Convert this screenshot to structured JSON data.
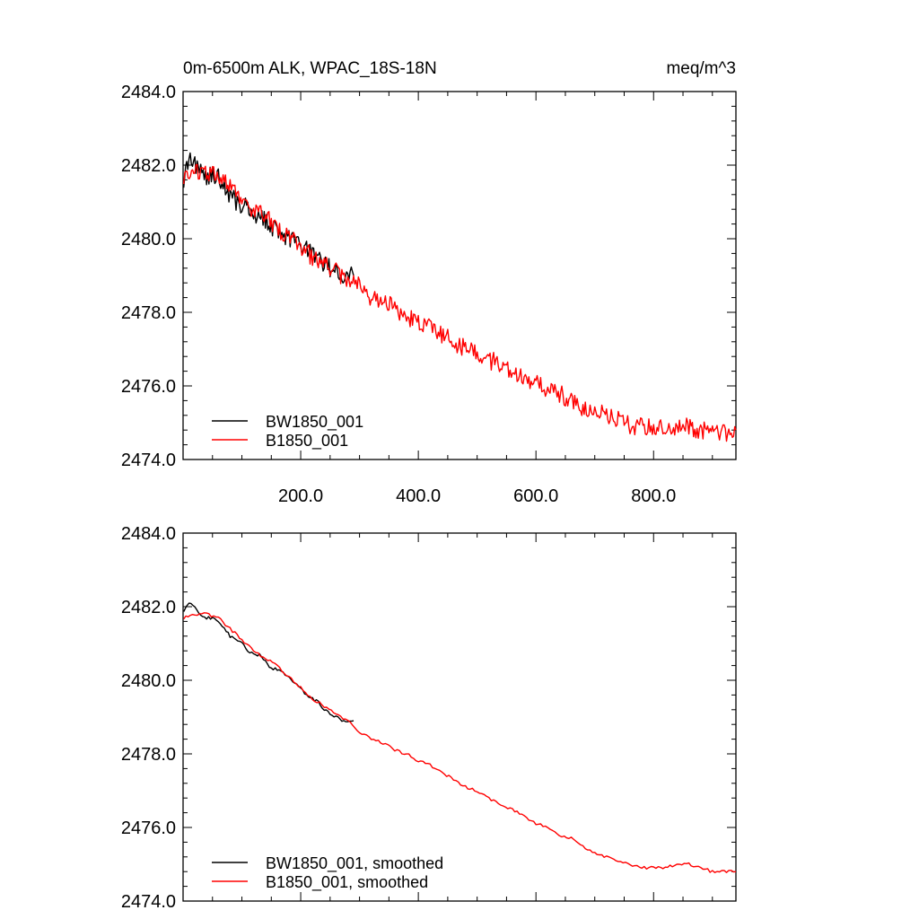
{
  "chart_data": [
    {
      "type": "line",
      "title_left": "0m-6500m ALK, WPAC_18S-18N",
      "title_right": "meq/m^3",
      "xlim": [
        0,
        940
      ],
      "ylim": [
        2474.0,
        2484.0
      ],
      "x_ticks": [
        200,
        400,
        600,
        800
      ],
      "x_tick_labels": [
        "200.0",
        "400.0",
        "600.0",
        "800.0"
      ],
      "y_ticks": [
        2474,
        2476,
        2478,
        2480,
        2482,
        2484
      ],
      "y_tick_labels": [
        "2474.0",
        "2476.0",
        "2478.0",
        "2480.0",
        "2482.0",
        "2484.0"
      ],
      "legend_position": "bottom-left",
      "series": [
        {
          "name": "BW1850_001",
          "color": "#000000",
          "x": [
            1,
            8,
            12,
            20,
            30,
            40,
            50,
            60,
            70,
            80,
            90,
            100,
            110,
            120,
            130,
            140,
            150,
            160,
            170,
            180,
            190,
            200,
            210,
            220,
            230,
            240,
            250,
            260,
            270,
            280,
            290
          ],
          "y": [
            2481.6,
            2482.0,
            2482.3,
            2482.0,
            2481.9,
            2481.7,
            2481.7,
            2481.7,
            2481.4,
            2481.2,
            2481.0,
            2480.9,
            2480.9,
            2480.7,
            2480.6,
            2480.5,
            2480.3,
            2480.3,
            2480.1,
            2480.0,
            2479.9,
            2479.8,
            2479.7,
            2479.6,
            2479.4,
            2479.3,
            2479.2,
            2479.1,
            2479.0,
            2479.0,
            2479.0
          ]
        },
        {
          "name": "B1850_001",
          "color": "#ff0000",
          "x": [
            1,
            20,
            40,
            60,
            80,
            100,
            120,
            140,
            160,
            180,
            200,
            220,
            240,
            260,
            280,
            300,
            320,
            340,
            360,
            380,
            400,
            420,
            440,
            460,
            480,
            500,
            520,
            540,
            560,
            580,
            600,
            620,
            640,
            660,
            680,
            700,
            720,
            740,
            760,
            780,
            800,
            820,
            840,
            860,
            880,
            900,
            920,
            940
          ],
          "y": [
            2481.7,
            2481.8,
            2481.8,
            2481.7,
            2481.4,
            2481.1,
            2480.8,
            2480.6,
            2480.3,
            2480.0,
            2479.8,
            2479.5,
            2479.3,
            2479.1,
            2478.9,
            2478.7,
            2478.4,
            2478.3,
            2478.1,
            2477.9,
            2477.7,
            2477.6,
            2477.4,
            2477.2,
            2477.0,
            2476.9,
            2476.7,
            2476.6,
            2476.4,
            2476.2,
            2476.1,
            2475.9,
            2475.8,
            2475.6,
            2475.4,
            2475.3,
            2475.2,
            2475.1,
            2474.9,
            2474.9,
            2474.9,
            2474.9,
            2474.9,
            2474.9,
            2474.8,
            2474.8,
            2474.7,
            2474.8
          ]
        }
      ]
    },
    {
      "type": "line",
      "xlim": [
        0,
        940
      ],
      "ylim": [
        2474.0,
        2484.0
      ],
      "y_ticks": [
        2474,
        2476,
        2478,
        2480,
        2482,
        2484
      ],
      "y_tick_labels": [
        "2474.0",
        "2476.0",
        "2478.0",
        "2480.0",
        "2482.0",
        "2484.0"
      ],
      "legend_position": "bottom-left",
      "series": [
        {
          "name": "BW1850_001, smoothed",
          "color": "#000000",
          "x": [
            1,
            10,
            20,
            30,
            40,
            50,
            60,
            70,
            80,
            90,
            100,
            110,
            120,
            130,
            140,
            150,
            160,
            170,
            180,
            190,
            200,
            210,
            220,
            230,
            240,
            250,
            260,
            270,
            280,
            290
          ],
          "y": [
            2481.9,
            2482.1,
            2482.0,
            2481.8,
            2481.7,
            2481.7,
            2481.6,
            2481.4,
            2481.2,
            2481.1,
            2481.0,
            2480.8,
            2480.7,
            2480.7,
            2480.5,
            2480.3,
            2480.3,
            2480.2,
            2480.1,
            2479.9,
            2479.8,
            2479.6,
            2479.5,
            2479.4,
            2479.2,
            2479.1,
            2479.0,
            2478.9,
            2478.9,
            2478.9
          ]
        },
        {
          "name": "B1850_001, smoothed",
          "color": "#ff0000",
          "x": [
            1,
            20,
            40,
            60,
            80,
            100,
            120,
            140,
            160,
            180,
            200,
            220,
            240,
            260,
            280,
            300,
            320,
            340,
            360,
            380,
            400,
            420,
            440,
            460,
            480,
            500,
            520,
            540,
            560,
            580,
            600,
            620,
            640,
            660,
            680,
            700,
            720,
            740,
            760,
            780,
            800,
            820,
            840,
            860,
            880,
            900,
            920,
            940
          ],
          "y": [
            2481.7,
            2481.8,
            2481.8,
            2481.7,
            2481.4,
            2481.1,
            2480.8,
            2480.6,
            2480.4,
            2480.1,
            2479.8,
            2479.5,
            2479.3,
            2479.1,
            2478.9,
            2478.6,
            2478.4,
            2478.3,
            2478.1,
            2478.0,
            2477.8,
            2477.7,
            2477.5,
            2477.3,
            2477.1,
            2477.0,
            2476.8,
            2476.6,
            2476.5,
            2476.3,
            2476.1,
            2476.0,
            2475.8,
            2475.7,
            2475.5,
            2475.3,
            2475.2,
            2475.1,
            2475.0,
            2474.9,
            2474.9,
            2474.9,
            2475.0,
            2475.0,
            2474.9,
            2474.8,
            2474.8,
            2474.8
          ]
        }
      ]
    }
  ]
}
